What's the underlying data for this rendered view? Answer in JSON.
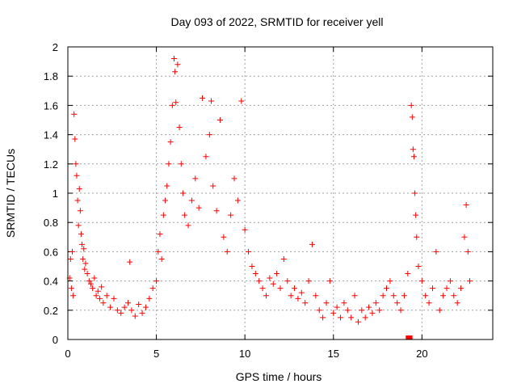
{
  "chart_data": {
    "type": "scatter",
    "title": "Day 093 of 2022, SRMTID for receiver yell",
    "xlabel": "GPS time / hours",
    "ylabel": "SRMTID / TECUs",
    "xlim": [
      0,
      24
    ],
    "ylim": [
      0,
      2
    ],
    "x_ticks": [
      0,
      5,
      10,
      15,
      20
    ],
    "x_tick_labels": [
      "0",
      "5",
      "10",
      "15",
      "20"
    ],
    "y_ticks": [
      0,
      0.2,
      0.4,
      0.6,
      0.8,
      1,
      1.2,
      1.4,
      1.6,
      1.8,
      2
    ],
    "y_tick_labels": [
      "0",
      "0.2",
      "0.4",
      "0.6",
      "0.8",
      "1",
      "1.2",
      "1.4",
      "1.6",
      "1.8",
      "2"
    ],
    "grid": true,
    "marker": "plus",
    "color": "#ff0000",
    "series": [
      {
        "name": "SRMTID",
        "points": [
          [
            0.1,
            0.42
          ],
          [
            0.15,
            0.55
          ],
          [
            0.2,
            0.35
          ],
          [
            0.25,
            0.6
          ],
          [
            0.3,
            0.3
          ],
          [
            0.35,
            1.54
          ],
          [
            0.4,
            1.37
          ],
          [
            0.45,
            1.2
          ],
          [
            0.5,
            1.12
          ],
          [
            0.55,
            0.95
          ],
          [
            0.6,
            0.78
          ],
          [
            0.65,
            1.03
          ],
          [
            0.7,
            0.88
          ],
          [
            0.75,
            0.72
          ],
          [
            0.8,
            0.65
          ],
          [
            0.85,
            0.55
          ],
          [
            0.9,
            0.62
          ],
          [
            0.95,
            0.48
          ],
          [
            1.0,
            0.52
          ],
          [
            1.1,
            0.45
          ],
          [
            1.2,
            0.4
          ],
          [
            1.3,
            0.38
          ],
          [
            1.4,
            0.35
          ],
          [
            1.5,
            0.42
          ],
          [
            1.6,
            0.3
          ],
          [
            1.7,
            0.33
          ],
          [
            1.8,
            0.28
          ],
          [
            1.9,
            0.36
          ],
          [
            2.0,
            0.25
          ],
          [
            2.2,
            0.3
          ],
          [
            2.4,
            0.22
          ],
          [
            2.6,
            0.28
          ],
          [
            2.8,
            0.2
          ],
          [
            3.0,
            0.18
          ],
          [
            3.2,
            0.22
          ],
          [
            3.4,
            0.25
          ],
          [
            3.5,
            0.53
          ],
          [
            3.6,
            0.2
          ],
          [
            3.8,
            0.16
          ],
          [
            4.0,
            0.24
          ],
          [
            4.2,
            0.18
          ],
          [
            4.4,
            0.22
          ],
          [
            4.6,
            0.28
          ],
          [
            4.8,
            0.35
          ],
          [
            5.0,
            0.4
          ],
          [
            5.1,
            0.6
          ],
          [
            5.2,
            0.72
          ],
          [
            5.3,
            0.55
          ],
          [
            5.4,
            0.85
          ],
          [
            5.5,
            0.95
          ],
          [
            5.6,
            1.05
          ],
          [
            5.7,
            1.2
          ],
          [
            5.8,
            1.35
          ],
          [
            5.9,
            1.6
          ],
          [
            6.0,
            1.92
          ],
          [
            6.05,
            1.83
          ],
          [
            6.1,
            1.62
          ],
          [
            6.2,
            1.88
          ],
          [
            6.3,
            1.45
          ],
          [
            6.4,
            1.2
          ],
          [
            6.5,
            1.0
          ],
          [
            6.6,
            0.85
          ],
          [
            6.8,
            0.78
          ],
          [
            7.0,
            0.95
          ],
          [
            7.2,
            1.1
          ],
          [
            7.4,
            0.9
          ],
          [
            7.6,
            1.65
          ],
          [
            7.8,
            1.25
          ],
          [
            8.0,
            1.4
          ],
          [
            8.1,
            1.63
          ],
          [
            8.2,
            1.05
          ],
          [
            8.4,
            0.88
          ],
          [
            8.6,
            1.5
          ],
          [
            8.8,
            0.7
          ],
          [
            9.0,
            0.6
          ],
          [
            9.2,
            0.85
          ],
          [
            9.4,
            1.1
          ],
          [
            9.6,
            0.95
          ],
          [
            9.8,
            1.63
          ],
          [
            10.0,
            0.75
          ],
          [
            10.2,
            0.6
          ],
          [
            10.4,
            0.5
          ],
          [
            10.6,
            0.45
          ],
          [
            10.8,
            0.4
          ],
          [
            11.0,
            0.35
          ],
          [
            11.2,
            0.3
          ],
          [
            11.4,
            0.42
          ],
          [
            11.6,
            0.38
          ],
          [
            11.8,
            0.45
          ],
          [
            12.0,
            0.35
          ],
          [
            12.2,
            0.55
          ],
          [
            12.4,
            0.4
          ],
          [
            12.6,
            0.3
          ],
          [
            12.8,
            0.35
          ],
          [
            13.0,
            0.28
          ],
          [
            13.2,
            0.32
          ],
          [
            13.4,
            0.25
          ],
          [
            13.6,
            0.4
          ],
          [
            13.8,
            0.65
          ],
          [
            14.0,
            0.3
          ],
          [
            14.2,
            0.2
          ],
          [
            14.4,
            0.15
          ],
          [
            14.6,
            0.25
          ],
          [
            14.8,
            0.4
          ],
          [
            15.0,
            0.18
          ],
          [
            15.2,
            0.22
          ],
          [
            15.4,
            0.15
          ],
          [
            15.6,
            0.25
          ],
          [
            15.8,
            0.2
          ],
          [
            16.0,
            0.15
          ],
          [
            16.2,
            0.3
          ],
          [
            16.4,
            0.12
          ],
          [
            16.6,
            0.2
          ],
          [
            16.8,
            0.15
          ],
          [
            17.0,
            0.22
          ],
          [
            17.2,
            0.18
          ],
          [
            17.4,
            0.25
          ],
          [
            17.6,
            0.2
          ],
          [
            17.8,
            0.3
          ],
          [
            18.0,
            0.35
          ],
          [
            18.2,
            0.4
          ],
          [
            18.4,
            0.3
          ],
          [
            18.6,
            0.25
          ],
          [
            18.8,
            0.2
          ],
          [
            19.0,
            0.3
          ],
          [
            19.2,
            0.45
          ],
          [
            19.4,
            1.6
          ],
          [
            19.45,
            1.52
          ],
          [
            19.5,
            1.3
          ],
          [
            19.55,
            1.25
          ],
          [
            19.6,
            1.0
          ],
          [
            19.65,
            0.85
          ],
          [
            19.7,
            0.7
          ],
          [
            19.8,
            0.5
          ],
          [
            20.0,
            0.4
          ],
          [
            20.2,
            0.3
          ],
          [
            20.4,
            0.25
          ],
          [
            20.6,
            0.35
          ],
          [
            20.8,
            0.6
          ],
          [
            21.0,
            0.2
          ],
          [
            21.2,
            0.3
          ],
          [
            21.4,
            0.35
          ],
          [
            21.6,
            0.4
          ],
          [
            21.8,
            0.3
          ],
          [
            22.0,
            0.25
          ],
          [
            22.2,
            0.35
          ],
          [
            22.4,
            0.7
          ],
          [
            22.5,
            0.92
          ],
          [
            22.6,
            0.6
          ],
          [
            22.7,
            0.4
          ]
        ]
      }
    ],
    "gap_markers": [
      19.2,
      19.35
    ]
  }
}
